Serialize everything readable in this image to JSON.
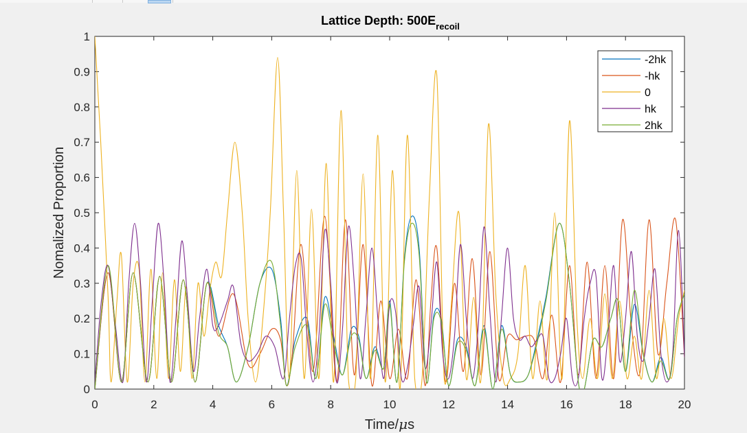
{
  "chart_data": {
    "type": "line",
    "title_main": "Lattice Depth: 500E",
    "title_sub": "recoil",
    "xlabel_main": "Time/",
    "xlabel_sym": "μ",
    "xlabel_unit": "s",
    "ylabel": "Nomalized Proportion",
    "xlim": [
      0,
      20
    ],
    "ylim": [
      0,
      1
    ],
    "xticks": [
      0,
      2,
      4,
      6,
      8,
      10,
      12,
      14,
      16,
      18,
      20
    ],
    "yticks": [
      0,
      0.1,
      0.2,
      0.3,
      0.4,
      0.5,
      0.6,
      0.7,
      0.8,
      0.9,
      1
    ],
    "ytick_labels": [
      "0",
      "0.1",
      "0.2",
      "0.3",
      "0.4",
      "0.5",
      "0.6",
      "0.7",
      "0.8",
      "0.9",
      "1"
    ],
    "legend_position": "top-right",
    "series": [
      {
        "name": "-2hk",
        "color": "#0072BD",
        "x": [
          0,
          0.45,
          0.9,
          1.3,
          1.8,
          2.2,
          2.6,
          3.0,
          3.4,
          3.8,
          4.2,
          4.5,
          4.8,
          5.2,
          5.6,
          6.0,
          6.3,
          6.5,
          6.8,
          7.2,
          7.5,
          7.8,
          8.1,
          8.4,
          8.7,
          8.95,
          9.2,
          9.5,
          9.8,
          10.0,
          10.25,
          10.5,
          10.75,
          11.0,
          11.25,
          11.5,
          11.75,
          12.0,
          12.3,
          12.6,
          12.9,
          13.2,
          13.5,
          13.8,
          14.1,
          14.4,
          14.7,
          15.0,
          15.3,
          15.75,
          16.1,
          16.4,
          16.6,
          16.9,
          17.2,
          17.5,
          17.75,
          18.0,
          18.3,
          18.6,
          18.9,
          19.2,
          19.5,
          19.75,
          20.0
        ],
        "y": [
          0,
          0.33,
          0.02,
          0.33,
          0.02,
          0.32,
          0.02,
          0.31,
          0.02,
          0.3,
          0.18,
          0.12,
          0.02,
          0.12,
          0.3,
          0.34,
          0.2,
          0.01,
          0.14,
          0.2,
          0.03,
          0.26,
          0.15,
          0.04,
          0.17,
          0.15,
          0.03,
          0.12,
          0.06,
          0.25,
          0.02,
          0.37,
          0.49,
          0.4,
          0.02,
          0.21,
          0.2,
          0.01,
          0.14,
          0.12,
          0.01,
          0.18,
          0.0,
          0.18,
          0.04,
          0.02,
          0.04,
          0.14,
          0.26,
          0.47,
          0.3,
          0.02,
          0.0,
          0.14,
          0.12,
          0.2,
          0.25,
          0.05,
          0.24,
          0.1,
          0.02,
          0.09,
          0.03,
          0.2,
          0.27
        ]
      },
      {
        "name": "-hk",
        "color": "#D95319",
        "x": [
          0,
          0.45,
          0.9,
          1.3,
          1.8,
          2.2,
          2.6,
          3.0,
          3.4,
          3.8,
          4.2,
          4.7,
          5.2,
          5.6,
          6.0,
          6.3,
          6.5,
          6.7,
          7.0,
          7.4,
          7.8,
          8.2,
          8.5,
          8.8,
          9.1,
          9.4,
          9.7,
          10.0,
          10.3,
          10.6,
          10.9,
          11.2,
          11.4,
          11.6,
          11.9,
          12.2,
          12.5,
          12.8,
          13.1,
          13.4,
          13.7,
          14.0,
          14.3,
          14.6,
          14.9,
          15.2,
          15.5,
          15.8,
          16.1,
          16.4,
          16.7,
          17.0,
          17.3,
          17.6,
          17.9,
          18.2,
          18.5,
          18.8,
          19.1,
          19.4,
          19.7,
          20.0
        ],
        "y": [
          0,
          0.33,
          0.02,
          0.33,
          0.02,
          0.32,
          0.02,
          0.31,
          0.02,
          0.3,
          0.15,
          0.27,
          0.07,
          0.1,
          0.17,
          0.14,
          0.01,
          0.1,
          0.41,
          0.05,
          0.49,
          0.02,
          0.48,
          0.04,
          0.41,
          0.01,
          0.25,
          0.03,
          0.17,
          0.03,
          0.31,
          0.01,
          0.25,
          0.4,
          0.02,
          0.3,
          0.05,
          0.37,
          0.04,
          0.39,
          0.03,
          0.15,
          0.14,
          0.15,
          0.14,
          0.03,
          0.21,
          0.02,
          0.35,
          0.04,
          0.36,
          0.03,
          0.35,
          0.03,
          0.48,
          0.18,
          0.05,
          0.48,
          0.1,
          0.3,
          0.48,
          0.09
        ]
      },
      {
        "name": "0",
        "color": "#EDB120",
        "x": [
          0,
          0.2,
          0.45,
          0.55,
          0.75,
          0.9,
          1.1,
          1.3,
          1.5,
          1.7,
          1.9,
          2.1,
          2.3,
          2.5,
          2.7,
          2.9,
          3.1,
          3.3,
          3.5,
          3.7,
          3.9,
          4.1,
          4.3,
          4.5,
          4.75,
          5.0,
          5.2,
          5.45,
          5.7,
          5.95,
          6.2,
          6.4,
          6.6,
          6.85,
          7.1,
          7.35,
          7.6,
          7.85,
          8.1,
          8.35,
          8.6,
          8.85,
          9.1,
          9.35,
          9.6,
          9.85,
          10.1,
          10.35,
          10.6,
          10.85,
          11.1,
          11.35,
          11.6,
          11.85,
          12.1,
          12.35,
          12.6,
          12.85,
          13.1,
          13.35,
          13.6,
          13.85,
          14.1,
          14.35,
          14.6,
          14.85,
          15.1,
          15.35,
          15.6,
          15.85,
          16.1,
          16.35,
          16.55,
          16.8,
          17.05,
          17.3,
          17.55,
          17.8,
          18.05,
          18.3,
          18.55,
          18.8,
          19.05,
          19.3,
          19.55,
          19.8,
          20.0
        ],
        "y": [
          1.0,
          0.7,
          0.26,
          0.02,
          0.25,
          0.38,
          0.02,
          0.3,
          0.34,
          0.02,
          0.34,
          0.03,
          0.33,
          0.03,
          0.31,
          0.05,
          0.29,
          0.03,
          0.3,
          0.15,
          0.28,
          0.36,
          0.32,
          0.5,
          0.7,
          0.5,
          0.2,
          0.02,
          0.2,
          0.5,
          0.94,
          0.5,
          0.03,
          0.62,
          0.03,
          0.51,
          0.03,
          0.64,
          0.02,
          0.79,
          0.03,
          0.03,
          0.61,
          0.03,
          0.72,
          0.02,
          0.62,
          0.0,
          0.72,
          0.03,
          0.03,
          0.55,
          0.89,
          0.03,
          0.25,
          0.5,
          0.03,
          0.26,
          0.03,
          0.75,
          0.27,
          0.03,
          0.03,
          0.1,
          0.35,
          0.03,
          0.25,
          0.03,
          0.5,
          0.03,
          0.76,
          0.2,
          0.03,
          0.2,
          0.03,
          0.27,
          0.03,
          0.25,
          0.03,
          0.15,
          0.03,
          0.28,
          0.03,
          0.2,
          0.03,
          0.2,
          0.28
        ]
      },
      {
        "name": "hk",
        "color": "#7E2F8E",
        "x": [
          0,
          0.22,
          0.45,
          0.7,
          0.95,
          1.15,
          1.35,
          1.55,
          1.75,
          1.95,
          2.15,
          2.35,
          2.55,
          2.75,
          2.95,
          3.15,
          3.35,
          3.55,
          3.8,
          4.0,
          4.2,
          4.5,
          4.7,
          4.95,
          5.2,
          5.5,
          5.8,
          6.1,
          6.4,
          6.6,
          6.8,
          7.0,
          7.2,
          7.4,
          7.6,
          7.8,
          8.0,
          8.2,
          8.4,
          8.6,
          8.8,
          9.0,
          9.2,
          9.4,
          9.6,
          9.8,
          10.0,
          10.2,
          10.4,
          10.6,
          10.8,
          11.0,
          11.2,
          11.4,
          11.6,
          11.8,
          12.0,
          12.2,
          12.4,
          12.6,
          12.8,
          13.0,
          13.2,
          13.4,
          13.6,
          13.8,
          14.0,
          14.2,
          14.4,
          14.6,
          14.8,
          15.0,
          15.2,
          15.4,
          15.6,
          15.8,
          16.0,
          16.2,
          16.4,
          16.6,
          16.8,
          17.0,
          17.2,
          17.4,
          17.6,
          17.8,
          18.0,
          18.2,
          18.4,
          18.6,
          18.8,
          19.0,
          19.2,
          19.4,
          19.6,
          19.8,
          20.0
        ],
        "y": [
          0.02,
          0.25,
          0.35,
          0.18,
          0.02,
          0.3,
          0.47,
          0.3,
          0.02,
          0.25,
          0.47,
          0.3,
          0.02,
          0.2,
          0.42,
          0.25,
          0.05,
          0.2,
          0.34,
          0.18,
          0.18,
          0.25,
          0.29,
          0.13,
          0.08,
          0.1,
          0.15,
          0.12,
          0.03,
          0.2,
          0.35,
          0.37,
          0.15,
          0.02,
          0.15,
          0.45,
          0.3,
          0.02,
          0.17,
          0.46,
          0.3,
          0.03,
          0.21,
          0.4,
          0.2,
          0.03,
          0.24,
          0.22,
          0.03,
          0.06,
          0.18,
          0.29,
          0.06,
          0.18,
          0.36,
          0.1,
          0.03,
          0.15,
          0.41,
          0.2,
          0.03,
          0.17,
          0.46,
          0.22,
          0.02,
          0.21,
          0.4,
          0.2,
          0.14,
          0.15,
          0.12,
          0.14,
          0.15,
          0.03,
          0.03,
          0.1,
          0.2,
          0.03,
          0.03,
          0.2,
          0.3,
          0.32,
          0.03,
          0.15,
          0.35,
          0.08,
          0.2,
          0.39,
          0.15,
          0.08,
          0.2,
          0.34,
          0.1,
          0.02,
          0.1,
          0.45,
          0.09
        ]
      },
      {
        "name": "2hk",
        "color": "#77AC30",
        "x": [
          0,
          0.45,
          0.9,
          1.3,
          1.8,
          2.2,
          2.6,
          3.0,
          3.4,
          3.8,
          4.2,
          4.5,
          4.8,
          5.2,
          5.6,
          6.0,
          6.3,
          6.5,
          6.8,
          7.2,
          7.5,
          7.8,
          8.1,
          8.4,
          8.7,
          8.95,
          9.2,
          9.5,
          9.8,
          10.0,
          10.25,
          10.5,
          10.75,
          11.0,
          11.25,
          11.5,
          11.75,
          12.0,
          12.3,
          12.6,
          12.9,
          13.2,
          13.5,
          13.8,
          14.1,
          14.4,
          14.7,
          15.0,
          15.3,
          15.75,
          16.1,
          16.4,
          16.6,
          16.9,
          17.2,
          17.5,
          17.75,
          18.0,
          18.3,
          18.6,
          18.9,
          19.2,
          19.5,
          19.75,
          20.0
        ],
        "y": [
          0,
          0.35,
          0.02,
          0.33,
          0.02,
          0.32,
          0.02,
          0.31,
          0.02,
          0.3,
          0.16,
          0.12,
          0.02,
          0.12,
          0.3,
          0.36,
          0.18,
          0.01,
          0.12,
          0.18,
          0.03,
          0.24,
          0.13,
          0.04,
          0.15,
          0.14,
          0.03,
          0.11,
          0.06,
          0.24,
          0.02,
          0.36,
          0.47,
          0.38,
          0.02,
          0.2,
          0.19,
          0.01,
          0.13,
          0.11,
          0.01,
          0.17,
          0.0,
          0.17,
          0.04,
          0.02,
          0.04,
          0.13,
          0.25,
          0.47,
          0.3,
          0.02,
          0.0,
          0.14,
          0.12,
          0.2,
          0.25,
          0.05,
          0.28,
          0.1,
          0.02,
          0.08,
          0.03,
          0.2,
          0.27
        ]
      }
    ]
  }
}
